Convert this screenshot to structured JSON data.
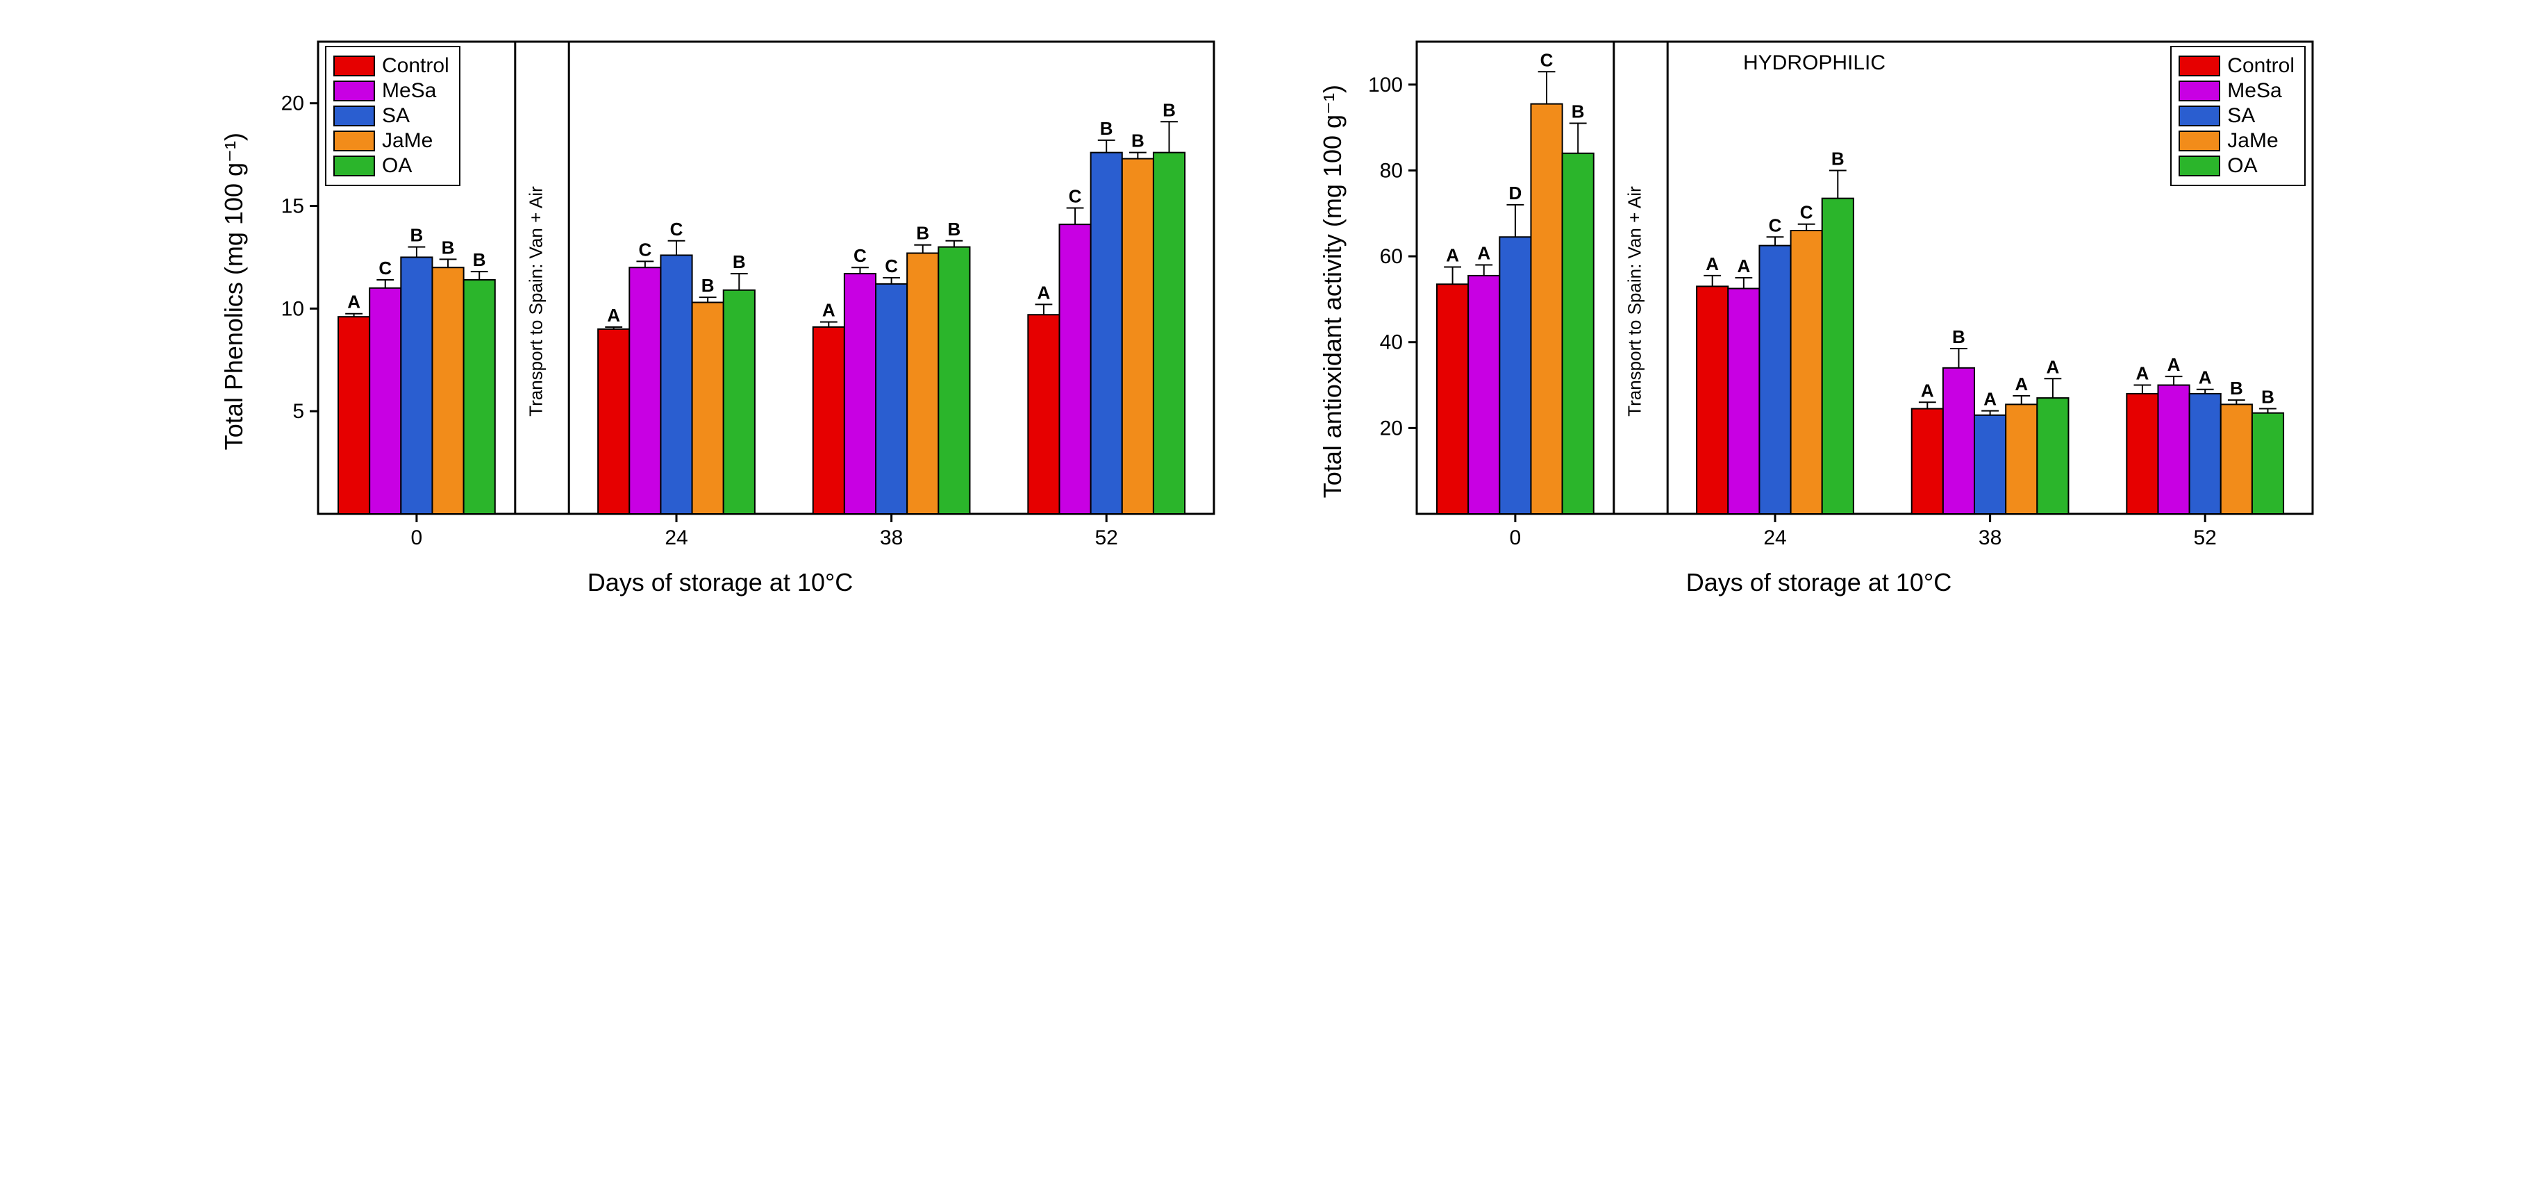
{
  "palette": {
    "series": [
      {
        "key": "Control",
        "color": "#e60000"
      },
      {
        "key": "MeSa",
        "color": "#c800e3"
      },
      {
        "key": "SA",
        "color": "#2a5ed0"
      },
      {
        "key": "JaMe",
        "color": "#f28c1a"
      },
      {
        "key": "OA",
        "color": "#2bb52b"
      }
    ],
    "black": "#000000",
    "background": "#ffffff"
  },
  "common": {
    "categories": [
      "0",
      "24",
      "38",
      "52"
    ],
    "xlabel": "Days of storage at 10°C",
    "divider_text": "Transport to Spain: Van + Air",
    "bar_width": 0.16,
    "group_gap": 0.1,
    "axis_fontsize": 36,
    "tick_fontsize": 30,
    "letter_fontsize": 26,
    "legend_fontsize": 30,
    "bar_border_width": 2
  },
  "left_chart": {
    "type": "grouped-bar",
    "ylabel": "Total Phenolics (mg 100 g⁻¹)",
    "ylim": [
      0,
      23
    ],
    "yticks": [
      5,
      10,
      15,
      20
    ],
    "legend_pos": "top-left",
    "groups": [
      {
        "x": "0",
        "bars": [
          {
            "series": "Control",
            "value": 9.6,
            "err": 0.15,
            "letter": "A"
          },
          {
            "series": "MeSa",
            "value": 11.0,
            "err": 0.4,
            "letter": "C"
          },
          {
            "series": "SA",
            "value": 12.5,
            "err": 0.5,
            "letter": "B"
          },
          {
            "series": "JaMe",
            "value": 12.0,
            "err": 0.4,
            "letter": "B"
          },
          {
            "series": "OA",
            "value": 11.4,
            "err": 0.4,
            "letter": "B"
          }
        ]
      },
      {
        "x": "24",
        "bars": [
          {
            "series": "Control",
            "value": 9.0,
            "err": 0.1,
            "letter": "A"
          },
          {
            "series": "MeSa",
            "value": 12.0,
            "err": 0.3,
            "letter": "C"
          },
          {
            "series": "SA",
            "value": 12.6,
            "err": 0.7,
            "letter": "C"
          },
          {
            "series": "JaMe",
            "value": 10.3,
            "err": 0.25,
            "letter": "B"
          },
          {
            "series": "OA",
            "value": 10.9,
            "err": 0.8,
            "letter": "B"
          }
        ]
      },
      {
        "x": "38",
        "bars": [
          {
            "series": "Control",
            "value": 9.1,
            "err": 0.25,
            "letter": "A"
          },
          {
            "series": "MeSa",
            "value": 11.7,
            "err": 0.3,
            "letter": "C"
          },
          {
            "series": "SA",
            "value": 11.2,
            "err": 0.3,
            "letter": "C"
          },
          {
            "series": "JaMe",
            "value": 12.7,
            "err": 0.4,
            "letter": "B"
          },
          {
            "series": "OA",
            "value": 13.0,
            "err": 0.3,
            "letter": "B"
          }
        ]
      },
      {
        "x": "52",
        "bars": [
          {
            "series": "Control",
            "value": 9.7,
            "err": 0.5,
            "letter": "A"
          },
          {
            "series": "MeSa",
            "value": 14.1,
            "err": 0.8,
            "letter": "C"
          },
          {
            "series": "SA",
            "value": 17.6,
            "err": 0.6,
            "letter": "B"
          },
          {
            "series": "JaMe",
            "value": 17.3,
            "err": 0.3,
            "letter": "B"
          },
          {
            "series": "OA",
            "value": 17.6,
            "err": 1.5,
            "letter": "B"
          }
        ]
      }
    ]
  },
  "right_chart": {
    "type": "grouped-bar",
    "ylabel": "Total antioxidant activity (mg 100 g⁻¹)",
    "ylim": [
      0,
      110
    ],
    "yticks": [
      20,
      40,
      60,
      80,
      100
    ],
    "legend_pos": "top-right",
    "panel_title": "HYDROPHILIC",
    "groups": [
      {
        "x": "0",
        "bars": [
          {
            "series": "Control",
            "value": 53.5,
            "err": 4.0,
            "letter": "A"
          },
          {
            "series": "MeSa",
            "value": 55.5,
            "err": 2.5,
            "letter": "A"
          },
          {
            "series": "SA",
            "value": 64.5,
            "err": 7.5,
            "letter": "D"
          },
          {
            "series": "JaMe",
            "value": 95.5,
            "err": 7.5,
            "letter": "C"
          },
          {
            "series": "OA",
            "value": 84.0,
            "err": 7.0,
            "letter": "B"
          }
        ]
      },
      {
        "x": "24",
        "bars": [
          {
            "series": "Control",
            "value": 53.0,
            "err": 2.5,
            "letter": "A"
          },
          {
            "series": "MeSa",
            "value": 52.5,
            "err": 2.5,
            "letter": "A"
          },
          {
            "series": "SA",
            "value": 62.5,
            "err": 2.0,
            "letter": "C"
          },
          {
            "series": "JaMe",
            "value": 66.0,
            "err": 1.5,
            "letter": "C"
          },
          {
            "series": "OA",
            "value": 73.5,
            "err": 6.5,
            "letter": "B"
          }
        ]
      },
      {
        "x": "38",
        "bars": [
          {
            "series": "Control",
            "value": 24.5,
            "err": 1.5,
            "letter": "A"
          },
          {
            "series": "MeSa",
            "value": 34.0,
            "err": 4.5,
            "letter": "B"
          },
          {
            "series": "SA",
            "value": 23.0,
            "err": 1.0,
            "letter": "A"
          },
          {
            "series": "JaMe",
            "value": 25.5,
            "err": 2.0,
            "letter": "A"
          },
          {
            "series": "OA",
            "value": 27.0,
            "err": 4.5,
            "letter": "A"
          }
        ]
      },
      {
        "x": "52",
        "bars": [
          {
            "series": "Control",
            "value": 28.0,
            "err": 2.0,
            "letter": "A"
          },
          {
            "series": "MeSa",
            "value": 30.0,
            "err": 2.0,
            "letter": "A"
          },
          {
            "series": "SA",
            "value": 28.0,
            "err": 1.0,
            "letter": "A"
          },
          {
            "series": "JaMe",
            "value": 25.5,
            "err": 1.0,
            "letter": "B"
          },
          {
            "series": "OA",
            "value": 23.5,
            "err": 1.0,
            "letter": "B"
          }
        ]
      }
    ]
  }
}
